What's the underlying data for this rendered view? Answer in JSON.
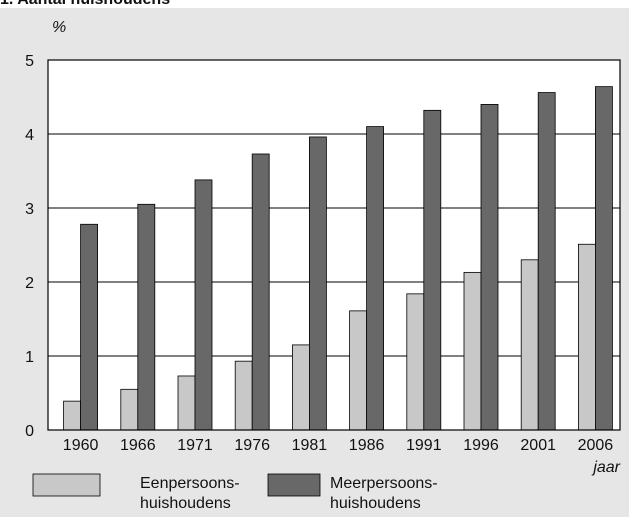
{
  "chart_data": {
    "type": "bar",
    "title": "1. Aantal huishoudens",
    "y_unit": "%",
    "x_label": "jaar",
    "categories": [
      "1960",
      "1966",
      "1971",
      "1976",
      "1981",
      "1986",
      "1991",
      "1996",
      "2001",
      "2006"
    ],
    "series": [
      {
        "name": "Eenpersoons-\nhuishoudens",
        "color": "#c8c8c8",
        "values": [
          0.39,
          0.55,
          0.73,
          0.93,
          1.15,
          1.61,
          1.84,
          2.13,
          2.3,
          2.51
        ]
      },
      {
        "name": "Meerpersoons-\nhuishoudens",
        "color": "#686868",
        "values": [
          2.78,
          3.05,
          3.38,
          3.73,
          3.96,
          4.1,
          4.32,
          4.4,
          4.56,
          4.64
        ]
      }
    ],
    "ylim": [
      0,
      5
    ],
    "yticks": [
      0,
      1,
      2,
      3,
      4,
      5
    ],
    "grid": true
  }
}
